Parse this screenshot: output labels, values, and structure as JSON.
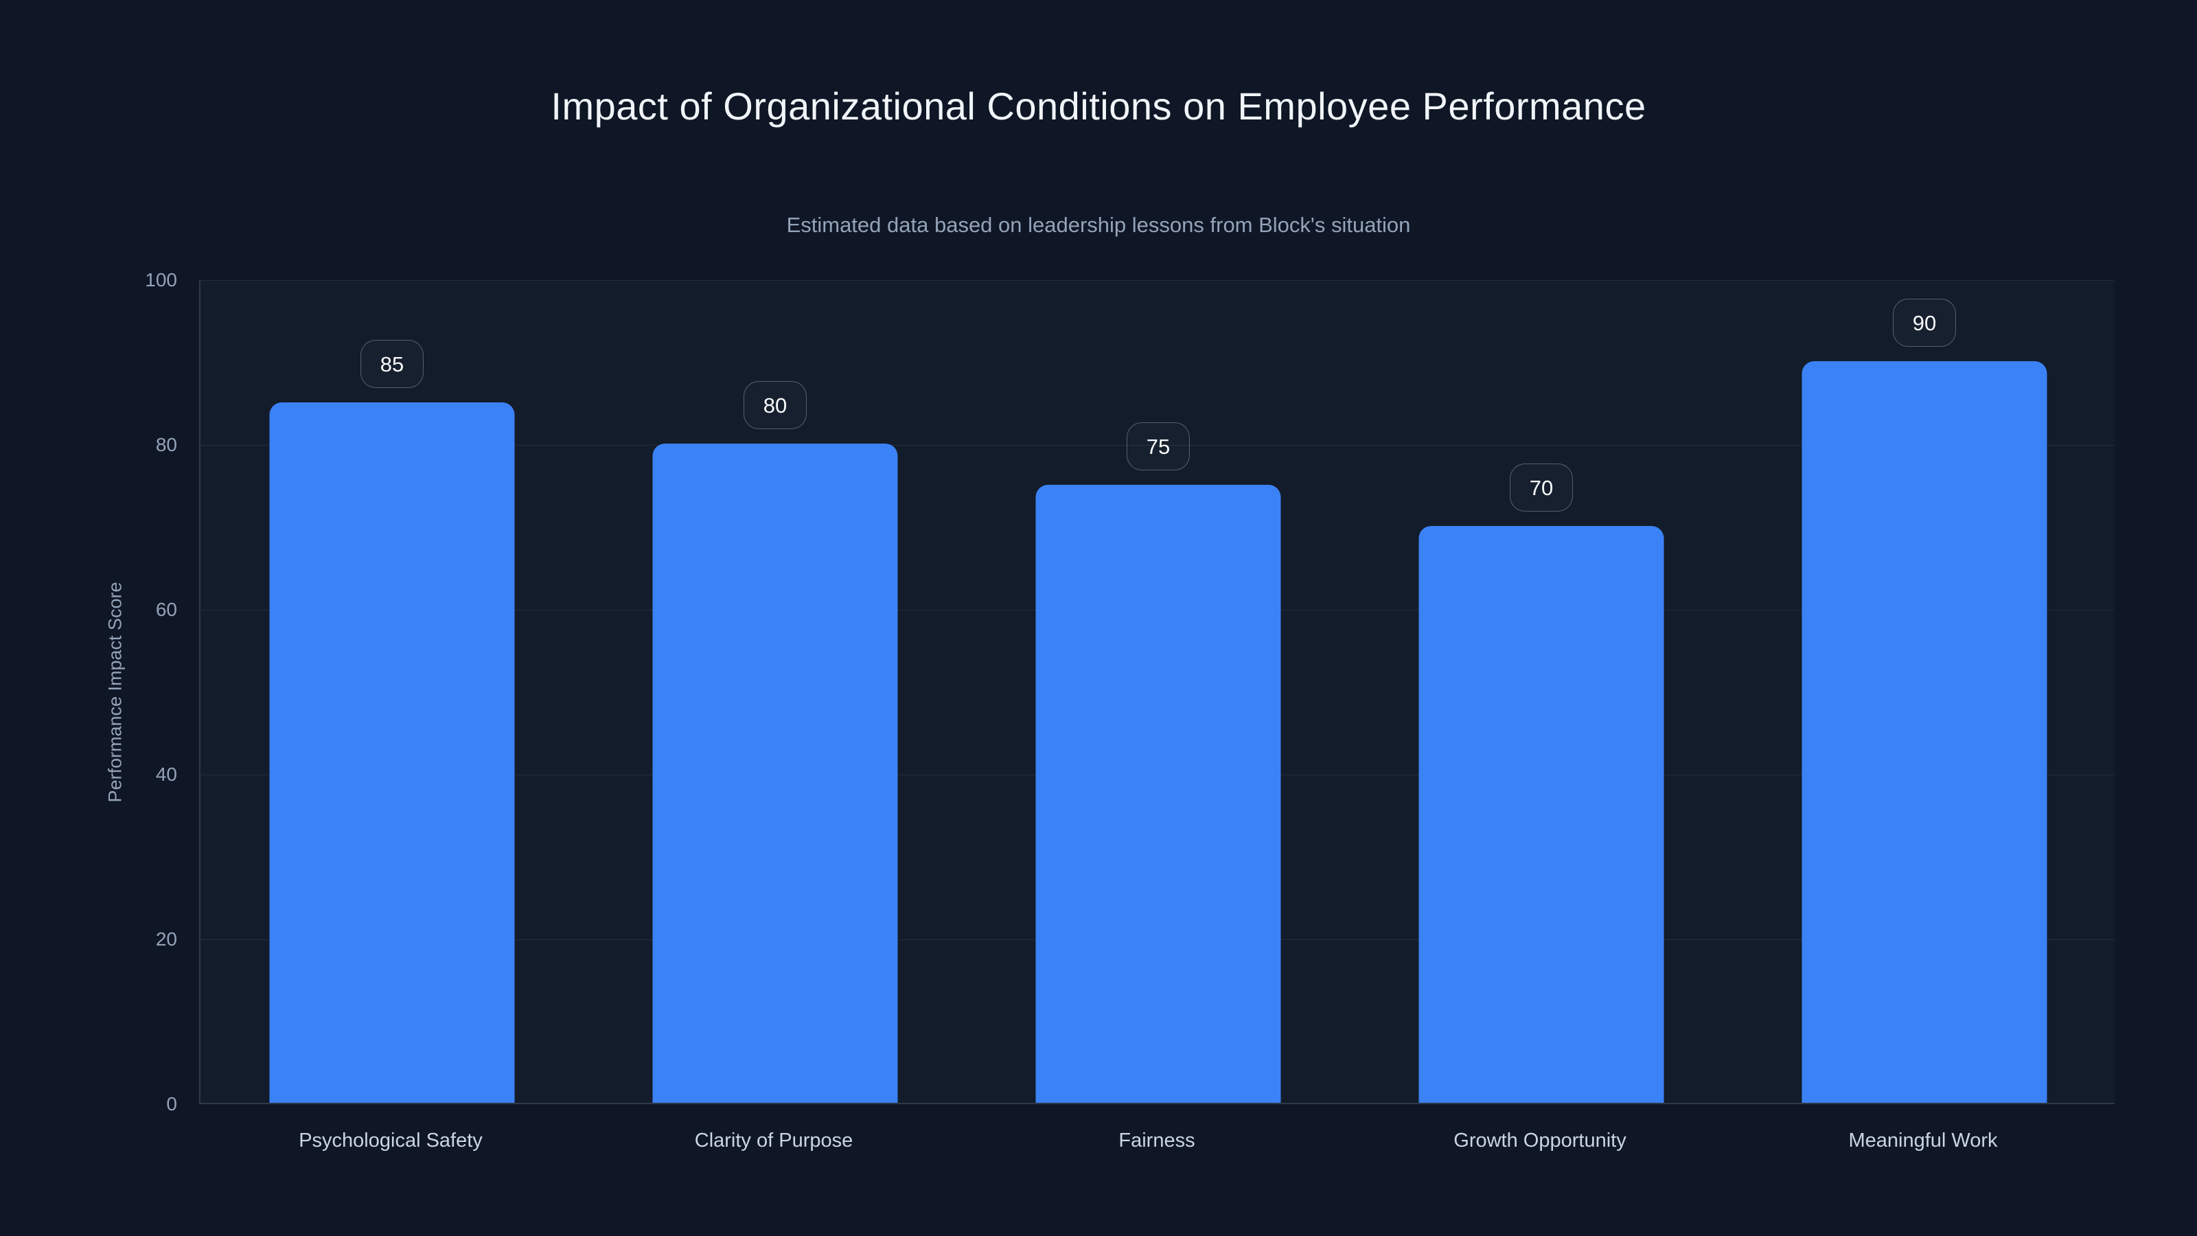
{
  "page": {
    "background_color": "#0f1726"
  },
  "chart_data": {
    "type": "bar",
    "title": "Impact of Organizational Conditions on Employee Performance",
    "subtitle": "Estimated data based on leadership lessons from Block's situation",
    "categories": [
      "Psychological Safety",
      "Clarity of Purpose",
      "Fairness",
      "Growth Opportunity",
      "Meaningful Work"
    ],
    "values": [
      85,
      80,
      75,
      70,
      90
    ],
    "value_labels": [
      "85",
      "80",
      "75",
      "70",
      "90"
    ],
    "xlabel": "",
    "ylabel": "Performance Impact Score",
    "ylim": [
      0,
      100
    ],
    "yticks": [
      0,
      20,
      40,
      60,
      80,
      100
    ],
    "grid": true,
    "legend": "none",
    "bar_color": "#3b82f6"
  },
  "colors": {
    "background": "#0f1726",
    "bar": "#3b82f6",
    "title_text": "#f1f5f9",
    "subtitle_text": "#94a3b8",
    "tick_text": "#94a3b8",
    "category_text": "#cbd5e1",
    "badge_text": "#f8fafc"
  }
}
